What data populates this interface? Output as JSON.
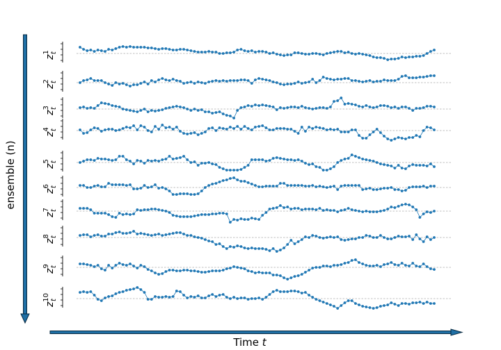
{
  "chart_data": {
    "type": "line",
    "xlabel": "Time t",
    "ylabel": "ensemble (n)",
    "n_points": 100,
    "grid": "dashed baseline per series",
    "colors": {
      "series": "#1f77b4",
      "arrow_fill": "#1f6fa5",
      "arrow_edge": "#0a2a40",
      "baseline": "#aaaaaa"
    },
    "series": [
      {
        "label_base": "z",
        "label_sup": "1",
        "label_sub": "t",
        "values": [
          0.9,
          0.6,
          0.4,
          0.5,
          0.3,
          0.5,
          0.4,
          0.3,
          0.6,
          0.5,
          0.7,
          0.9,
          1.0,
          0.9,
          1.0,
          0.9,
          0.9,
          0.9,
          0.9,
          0.8,
          0.8,
          0.7,
          0.6,
          0.7,
          0.7,
          0.6,
          0.5,
          0.5,
          0.6,
          0.6,
          0.5,
          0.4,
          0.3,
          0.2,
          0.2,
          0.2,
          0.3,
          0.2,
          0.2,
          0.0,
          0.0,
          0.1,
          0.1,
          0.2,
          0.5,
          0.6,
          0.4,
          0.3,
          0.4,
          0.2,
          0.3,
          0.3,
          0.2,
          0.0,
          0.1,
          -0.1,
          -0.2,
          -0.3,
          -0.2,
          -0.2,
          0.1,
          0.1,
          0.0,
          -0.1,
          -0.1,
          0.0,
          0.0,
          -0.1,
          -0.2,
          0.0,
          0.1,
          0.2,
          0.3,
          0.3,
          0.1,
          0.2,
          0.0,
          -0.1,
          0.0,
          -0.1,
          -0.2,
          -0.3,
          -0.5,
          -0.6,
          -0.6,
          -0.7,
          -0.9,
          -0.8,
          -0.8,
          -0.7,
          -0.5,
          -0.6,
          -0.5,
          -0.5,
          -0.4,
          -0.4,
          -0.3,
          0.0,
          0.3,
          0.5
        ]
      },
      {
        "label_base": "z",
        "label_sup": "2",
        "label_sub": "t",
        "values": [
          0.0,
          0.3,
          0.4,
          0.6,
          0.3,
          0.3,
          0.3,
          0.0,
          -0.2,
          -0.4,
          0.0,
          -0.2,
          -0.1,
          -0.3,
          -0.5,
          -0.3,
          -0.3,
          -0.1,
          0.1,
          -0.2,
          0.3,
          0.1,
          0.4,
          0.6,
          0.4,
          0.3,
          0.5,
          0.3,
          0.2,
          -0.1,
          0.0,
          0.1,
          -0.1,
          0.1,
          0.0,
          -0.1,
          0.1,
          0.2,
          0.3,
          0.2,
          0.3,
          0.2,
          0.3,
          0.3,
          0.3,
          0.4,
          0.4,
          0.3,
          -0.1,
          0.4,
          0.6,
          0.5,
          0.4,
          0.3,
          0.1,
          0.0,
          -0.2,
          -0.3,
          -0.2,
          -0.2,
          -0.1,
          0.1,
          -0.1,
          0.0,
          0.1,
          0.5,
          0.0,
          0.3,
          0.8,
          0.6,
          0.5,
          0.4,
          0.5,
          0.5,
          0.6,
          0.6,
          0.3,
          0.3,
          0.2,
          0.1,
          0.2,
          0.3,
          0.1,
          0.2,
          0.2,
          0.4,
          0.3,
          0.3,
          0.3,
          0.5,
          0.9,
          1.0,
          0.7,
          0.7,
          0.7,
          0.8,
          0.8,
          0.9,
          1.0,
          1.0
        ]
      },
      {
        "label_base": "z",
        "label_sup": "3",
        "label_sub": "t",
        "values": [
          0.2,
          0.3,
          0.1,
          0.2,
          0.1,
          0.5,
          0.9,
          0.8,
          0.7,
          0.5,
          0.4,
          0.3,
          0.0,
          -0.1,
          -0.2,
          -0.3,
          -0.4,
          -0.2,
          0.0,
          -0.4,
          -0.2,
          -0.3,
          -0.2,
          -0.1,
          0.1,
          0.2,
          0.3,
          0.4,
          0.3,
          0.2,
          0.0,
          -0.2,
          0.0,
          -0.2,
          -0.1,
          -0.4,
          -0.4,
          -0.6,
          -0.5,
          -0.4,
          -0.7,
          -0.9,
          -1.0,
          -1.3,
          -0.2,
          0.2,
          0.3,
          0.5,
          0.4,
          0.6,
          0.5,
          0.6,
          0.5,
          0.4,
          0.3,
          -0.1,
          0.2,
          0.1,
          0.2,
          0.3,
          0.3,
          0.2,
          0.4,
          0.2,
          0.1,
          0.0,
          0.1,
          0.2,
          0.2,
          0.1,
          0.3,
          1.1,
          1.2,
          1.6,
          0.7,
          0.8,
          0.7,
          0.6,
          0.4,
          0.3,
          0.5,
          0.3,
          0.2,
          0.3,
          0.5,
          0.5,
          0.4,
          0.2,
          0.3,
          0.1,
          0.3,
          0.3,
          0.1,
          -0.2,
          0.1,
          0.1,
          0.2,
          0.4,
          0.4,
          0.3
        ]
      },
      {
        "label_base": "z",
        "label_sup": "4",
        "label_sub": "t",
        "values": [
          0.1,
          -0.4,
          -0.3,
          0.1,
          0.4,
          0.3,
          -0.1,
          0.1,
          0.2,
          0.2,
          0.0,
          0.1,
          0.3,
          0.5,
          0.4,
          0.7,
          0.1,
          0.7,
          0.5,
          0.0,
          -0.2,
          0.6,
          0.2,
          0.8,
          0.4,
          0.5,
          0.2,
          0.5,
          -0.1,
          -0.4,
          -0.5,
          -0.4,
          -0.3,
          -0.6,
          -0.4,
          -0.2,
          0.3,
          0.4,
          0.0,
          0.4,
          0.3,
          0.2,
          0.5,
          0.3,
          0.6,
          0.2,
          0.6,
          0.3,
          0.1,
          0.5,
          0.6,
          0.7,
          0.4,
          0.1,
          0.1,
          0.3,
          0.3,
          0.3,
          0.2,
          0.2,
          -0.1,
          -0.4,
          0.5,
          -0.1,
          0.5,
          0.3,
          0.5,
          0.4,
          0.3,
          0.1,
          0.2,
          0.1,
          0.2,
          -0.2,
          -0.2,
          -0.2,
          0.1,
          0.1,
          -0.7,
          -1.1,
          -1.1,
          -0.6,
          -0.2,
          0.2,
          -0.3,
          -0.8,
          -1.2,
          -1.4,
          -1.2,
          -1.0,
          -1.1,
          -1.2,
          -1.0,
          -1.0,
          -0.7,
          -0.9,
          0.0,
          0.5,
          0.4,
          0.1
        ]
      },
      {
        "label_base": "z",
        "label_sup": "5",
        "label_sub": "t",
        "values": [
          0.0,
          0.2,
          0.4,
          0.4,
          0.3,
          0.6,
          0.5,
          0.5,
          0.4,
          0.3,
          0.4,
          0.9,
          0.9,
          0.4,
          0.2,
          -0.2,
          0.3,
          0.2,
          -0.1,
          0.3,
          0.2,
          0.3,
          0.2,
          0.4,
          0.5,
          0.9,
          0.5,
          0.6,
          0.7,
          0.9,
          0.4,
          0.0,
          0.1,
          -0.4,
          -0.1,
          -0.1,
          0.0,
          -0.2,
          -0.3,
          -0.7,
          -0.9,
          -1.1,
          -1.1,
          -1.1,
          -1.1,
          -1.0,
          -0.7,
          -0.4,
          0.4,
          0.4,
          0.4,
          0.4,
          0.2,
          0.3,
          0.6,
          0.7,
          0.6,
          0.5,
          0.4,
          0.4,
          0.3,
          0.4,
          0.2,
          -0.1,
          -0.3,
          -0.2,
          -0.6,
          -0.7,
          -1.1,
          -1.1,
          -0.9,
          -0.6,
          0.0,
          0.3,
          0.5,
          0.6,
          1.1,
          0.9,
          0.7,
          0.5,
          0.4,
          0.3,
          0.2,
          0.0,
          -0.2,
          -0.3,
          -0.4,
          -0.5,
          -0.8,
          -0.4,
          -0.8,
          -0.9,
          -0.5,
          -0.3,
          -0.4,
          -0.4,
          -0.4,
          -0.5,
          -0.2,
          -0.6
        ]
      },
      {
        "label_base": "z",
        "label_sup": "6",
        "label_sub": "t",
        "values": [
          0.3,
          0.3,
          0.0,
          0.0,
          0.2,
          0.3,
          0.1,
          0.1,
          0.6,
          0.4,
          0.4,
          0.4,
          0.4,
          0.3,
          0.4,
          -0.2,
          -0.2,
          -0.1,
          0.3,
          0.0,
          0.1,
          0.4,
          -0.1,
          0.0,
          -0.2,
          -0.5,
          -1.0,
          -1.0,
          -0.9,
          -0.9,
          -0.9,
          -1.0,
          -1.0,
          -0.9,
          -0.5,
          0.0,
          0.3,
          0.5,
          0.6,
          0.8,
          1.0,
          1.1,
          1.3,
          1.4,
          1.1,
          0.9,
          0.9,
          0.7,
          0.5,
          0.3,
          0.1,
          0.1,
          0.2,
          0.2,
          0.2,
          0.2,
          0.6,
          0.6,
          0.3,
          0.3,
          0.3,
          0.3,
          0.3,
          0.2,
          0.2,
          0.3,
          0.1,
          0.2,
          0.1,
          0.0,
          0.1,
          0.2,
          -0.3,
          0.2,
          0.3,
          0.3,
          0.3,
          0.3,
          0.3,
          -0.3,
          -0.2,
          -0.1,
          -0.3,
          -0.3,
          -0.2,
          -0.1,
          -0.1,
          0.0,
          -0.3,
          -0.3,
          -0.5,
          -0.4,
          0.0,
          0.1,
          0.1,
          0.1,
          0.2,
          0.0,
          0.2,
          0.2
        ]
      },
      {
        "label_base": "z",
        "label_sup": "7",
        "label_sub": "t",
        "values": [
          0.4,
          0.4,
          0.4,
          0.2,
          -0.3,
          -0.3,
          -0.3,
          -0.3,
          -0.5,
          -0.8,
          -0.9,
          -0.3,
          -0.5,
          -0.4,
          -0.5,
          -0.4,
          0.2,
          0.1,
          0.2,
          0.2,
          0.3,
          0.3,
          0.2,
          0.1,
          0.0,
          -0.2,
          -0.6,
          -0.7,
          -0.8,
          -0.8,
          -0.8,
          -0.8,
          -0.7,
          -0.6,
          -0.5,
          -0.5,
          -0.5,
          -0.4,
          -0.4,
          -0.3,
          -0.3,
          -0.4,
          -1.6,
          -1.2,
          -1.3,
          -1.1,
          -1.2,
          -1.2,
          -1.0,
          -1.1,
          -1.2,
          -0.6,
          -0.2,
          0.3,
          0.4,
          0.5,
          0.8,
          0.5,
          0.6,
          0.3,
          0.4,
          0.4,
          0.2,
          0.3,
          0.3,
          0.3,
          0.2,
          0.4,
          0.1,
          0.2,
          0.1,
          0.1,
          -0.1,
          0.1,
          0.2,
          0.4,
          0.2,
          0.1,
          0.0,
          -0.1,
          0.0,
          -0.1,
          -0.1,
          -0.1,
          0.0,
          0.1,
          0.3,
          0.6,
          0.5,
          0.7,
          0.9,
          1.0,
          0.9,
          0.6,
          0.2,
          -0.9,
          -0.4,
          -0.1,
          -0.2,
          0.0
        ]
      },
      {
        "label_base": "z",
        "label_sup": "8",
        "label_sub": "t",
        "values": [
          0.3,
          0.4,
          0.4,
          0.1,
          0.3,
          0.4,
          0.2,
          0.2,
          0.5,
          0.5,
          0.7,
          0.8,
          0.6,
          0.6,
          0.7,
          0.9,
          0.5,
          0.6,
          0.5,
          0.4,
          0.3,
          0.4,
          0.5,
          0.3,
          0.4,
          0.5,
          0.6,
          0.7,
          0.7,
          0.5,
          0.3,
          0.3,
          0.1,
          0.0,
          -0.1,
          -0.3,
          -0.5,
          -0.6,
          -1.0,
          -0.9,
          -1.3,
          -1.6,
          -1.3,
          -1.4,
          -1.2,
          -1.3,
          -1.5,
          -1.6,
          -1.5,
          -1.6,
          -1.6,
          -1.6,
          -1.7,
          -1.9,
          -1.6,
          -2.0,
          -1.8,
          -1.5,
          -1.0,
          -0.4,
          -0.9,
          -0.6,
          -0.3,
          0.1,
          0.0,
          0.3,
          0.2,
          0.0,
          -0.1,
          0.0,
          0.1,
          0.0,
          0.1,
          -0.3,
          -0.4,
          -0.3,
          -0.2,
          -0.2,
          0.0,
          0.0,
          0.3,
          0.2,
          0.0,
          0.0,
          0.3,
          0.0,
          -0.2,
          -0.2,
          0.0,
          0.2,
          0.1,
          0.1,
          0.2,
          -0.3,
          0.4,
          -0.2,
          -0.6,
          0.1,
          -0.3,
          0.0
        ]
      },
      {
        "label_base": "z",
        "label_sup": "9",
        "label_sub": "t",
        "values": [
          0.5,
          0.5,
          0.4,
          0.3,
          0.1,
          0.3,
          -0.2,
          -0.4,
          0.3,
          -0.1,
          0.3,
          0.6,
          0.4,
          0.3,
          0.5,
          0.2,
          -0.1,
          0.3,
          0.1,
          -0.3,
          -0.5,
          -0.8,
          -1.0,
          -0.9,
          -0.6,
          -0.4,
          -0.4,
          -0.5,
          -0.5,
          -0.4,
          -0.4,
          -0.5,
          -0.5,
          -0.6,
          -0.7,
          -0.7,
          -0.6,
          -0.5,
          -0.5,
          -0.5,
          -0.4,
          -0.2,
          -0.1,
          0.1,
          0.0,
          -0.1,
          -0.2,
          -0.5,
          -0.6,
          -0.8,
          -0.7,
          -0.8,
          -0.8,
          -0.8,
          -1.1,
          -1.1,
          -1.2,
          -1.5,
          -1.7,
          -1.5,
          -1.3,
          -1.2,
          -1.0,
          -0.7,
          -0.4,
          -0.1,
          0.0,
          0.0,
          0.2,
          0.2,
          0.1,
          0.3,
          0.3,
          0.4,
          0.6,
          0.7,
          1.0,
          1.1,
          0.7,
          0.5,
          0.3,
          0.2,
          0.2,
          0.3,
          0.1,
          0.4,
          0.5,
          0.7,
          0.4,
          0.3,
          0.6,
          0.3,
          0.2,
          0.6,
          0.2,
          0.1,
          0.5,
          0.1,
          -0.2,
          -0.3
        ]
      },
      {
        "label_base": "z",
        "label_sup": "10",
        "label_sub": "t",
        "values": [
          0.9,
          1.0,
          0.9,
          1.0,
          0.5,
          -0.1,
          -0.3,
          0.1,
          0.3,
          0.4,
          0.7,
          0.9,
          1.0,
          1.2,
          1.3,
          1.4,
          1.6,
          1.3,
          0.9,
          -0.1,
          -0.1,
          0.3,
          0.2,
          0.2,
          0.3,
          0.2,
          0.3,
          1.1,
          1.0,
          0.5,
          0.1,
          0.3,
          0.2,
          0.4,
          0.1,
          0.1,
          0.4,
          0.6,
          0.3,
          0.5,
          0.6,
          0.2,
          0.0,
          0.2,
          0.0,
          0.1,
          0.1,
          -0.1,
          0.0,
          0.0,
          0.1,
          -0.1,
          0.2,
          0.6,
          1.0,
          1.2,
          1.0,
          1.0,
          1.0,
          1.1,
          1.1,
          1.0,
          0.8,
          0.9,
          0.5,
          0.2,
          -0.1,
          -0.3,
          -0.5,
          -0.7,
          -0.9,
          -1.1,
          -1.4,
          -1.0,
          -0.6,
          -0.3,
          -0.3,
          -0.7,
          -0.9,
          -1.1,
          -1.2,
          -1.3,
          -1.4,
          -1.3,
          -1.1,
          -1.0,
          -0.9,
          -0.6,
          -0.8,
          -1.0,
          -0.7,
          -0.7,
          -0.8,
          -0.6,
          -0.6,
          -0.5,
          -0.7,
          -0.5,
          -0.7,
          -0.7
        ]
      }
    ]
  }
}
